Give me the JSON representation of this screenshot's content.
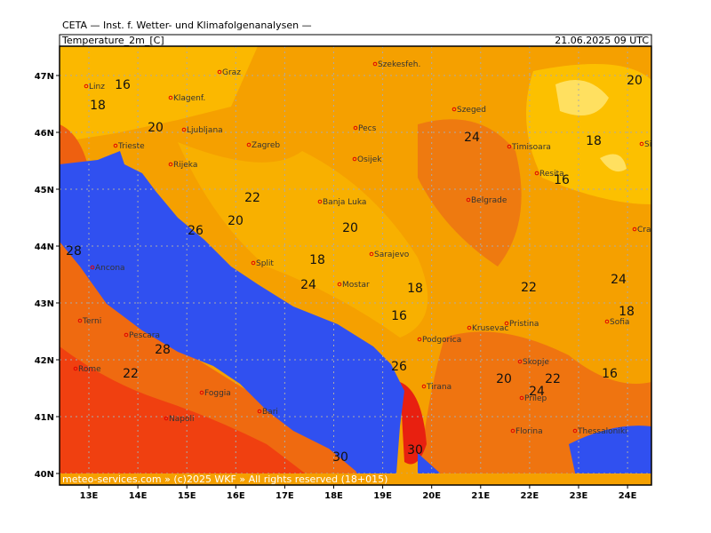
{
  "header": {
    "title": "CETA — Inst. f. Wetter- und Klimafolgenanalysen —"
  },
  "panel": {
    "title": "Temperature_2m_[C]",
    "date": "21.06.2025 09 UTC"
  },
  "footer": "meteo-services.com » (c)2025 WKF » All rights reserved (18+015)",
  "lat_labels": [
    "47N",
    "46N",
    "45N",
    "44N",
    "43N",
    "42N",
    "41N",
    "40N"
  ],
  "lon_labels": [
    "13E",
    "14E",
    "15E",
    "16E",
    "17E",
    "18E",
    "19E",
    "20E",
    "21E",
    "22E",
    "23E",
    "24E"
  ],
  "cities": [
    "Linz",
    "Graz",
    "Szekesfeh.",
    "Klagenf.",
    "Szeged",
    "Pecs",
    "Ljubljana",
    "Zagreb",
    "Timisoara",
    "Osijek",
    "Sibiu",
    "Trieste",
    "Rijeka",
    "Resita",
    "Banja Luka",
    "Belgrade",
    "Craiova",
    "Sarajevo",
    "Ancona",
    "Split",
    "Mostar",
    "Pristina",
    "Sofia",
    "Terni",
    "Pescara",
    "Podgorica",
    "Krusevac",
    "Rome",
    "Skopje",
    "Tirana",
    "Foggia",
    "Prilep",
    "Bari",
    "Napoli",
    "Florina",
    "Thessaloniki"
  ],
  "contour_labels": [
    16,
    18,
    20,
    20,
    24,
    18,
    16,
    22,
    20,
    20,
    26,
    18,
    24,
    18,
    22,
    24,
    16,
    18,
    28,
    26,
    20,
    22,
    24,
    16,
    22,
    28,
    30,
    30
  ]
}
